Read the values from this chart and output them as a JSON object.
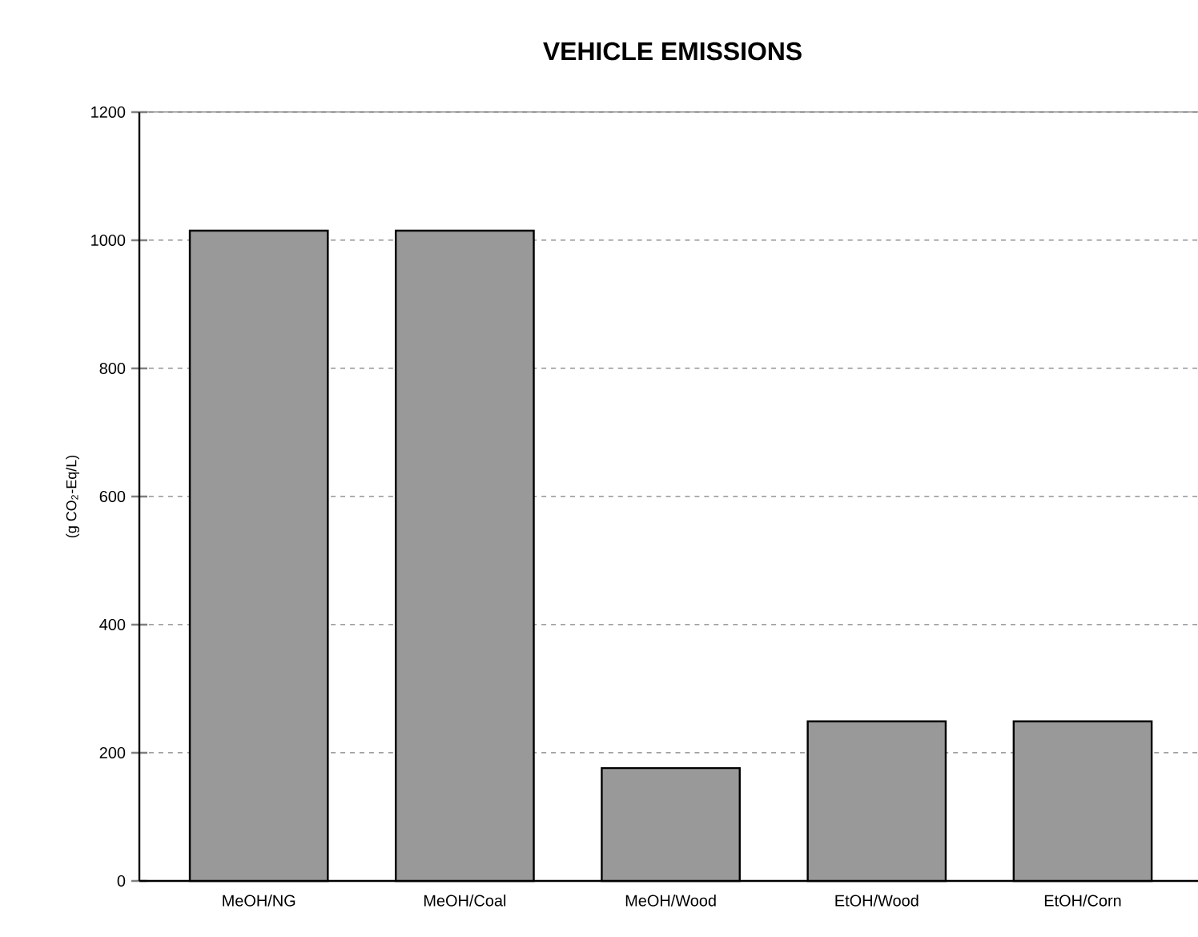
{
  "chart_data": {
    "type": "bar",
    "title": "VEHICLE EMISSIONS",
    "ylabel": "(g CO$_{2}$-Eq/L)",
    "categories": [
      "MeOH/NG",
      "MeOH/Coal",
      "MeOH/Wood",
      "EtOH/Wood",
      "EtOH/Corn"
    ],
    "values": [
      1015,
      1015,
      176,
      249,
      249
    ],
    "color": "#999999",
    "ylim": [
      0,
      1200
    ],
    "yticks": [
      0,
      200,
      400,
      600,
      800,
      1000,
      1200
    ],
    "grid": "y"
  }
}
